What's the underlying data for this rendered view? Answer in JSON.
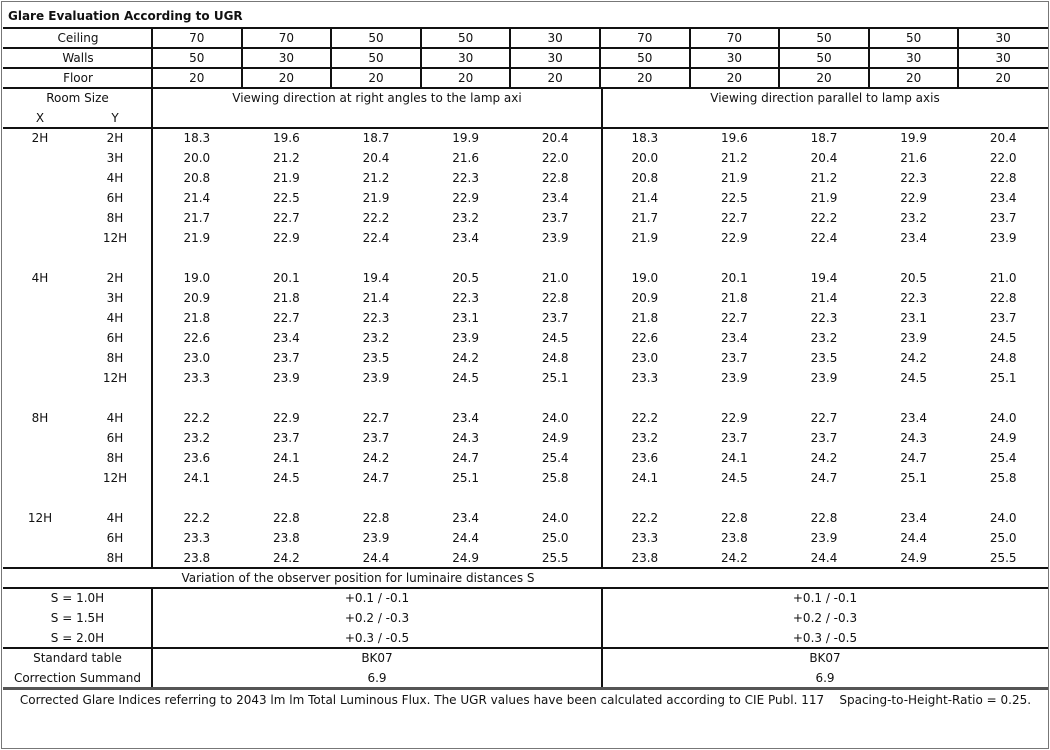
{
  "title": "Glare Evaluation According to UGR",
  "reflectances": [
    {
      "label": "Ceiling",
      "values": [
        "70",
        "70",
        "50",
        "50",
        "30",
        "70",
        "70",
        "50",
        "50",
        "30"
      ]
    },
    {
      "label": "Walls",
      "values": [
        "50",
        "30",
        "50",
        "30",
        "30",
        "50",
        "30",
        "50",
        "30",
        "30"
      ]
    },
    {
      "label": "Floor",
      "values": [
        "20",
        "20",
        "20",
        "20",
        "20",
        "20",
        "20",
        "20",
        "20",
        "20"
      ]
    }
  ],
  "room_size_label": "Room Size",
  "x_label": "X",
  "y_label": "Y",
  "direction_right_angles": "Viewing direction at right angles to the lamp axi",
  "direction_parallel": "Viewing direction parallel to lamp axis",
  "groups": [
    {
      "x": "2H",
      "rows": [
        {
          "y": "2H",
          "perp": [
            "18.3",
            "19.6",
            "18.7",
            "19.9",
            "20.4"
          ],
          "par": [
            "18.3",
            "19.6",
            "18.7",
            "19.9",
            "20.4"
          ]
        },
        {
          "y": "3H",
          "perp": [
            "20.0",
            "21.2",
            "20.4",
            "21.6",
            "22.0"
          ],
          "par": [
            "20.0",
            "21.2",
            "20.4",
            "21.6",
            "22.0"
          ]
        },
        {
          "y": "4H",
          "perp": [
            "20.8",
            "21.9",
            "21.2",
            "22.3",
            "22.8"
          ],
          "par": [
            "20.8",
            "21.9",
            "21.2",
            "22.3",
            "22.8"
          ]
        },
        {
          "y": "6H",
          "perp": [
            "21.4",
            "22.5",
            "21.9",
            "22.9",
            "23.4"
          ],
          "par": [
            "21.4",
            "22.5",
            "21.9",
            "22.9",
            "23.4"
          ]
        },
        {
          "y": "8H",
          "perp": [
            "21.7",
            "22.7",
            "22.2",
            "23.2",
            "23.7"
          ],
          "par": [
            "21.7",
            "22.7",
            "22.2",
            "23.2",
            "23.7"
          ]
        },
        {
          "y": "12H",
          "perp": [
            "21.9",
            "22.9",
            "22.4",
            "23.4",
            "23.9"
          ],
          "par": [
            "21.9",
            "22.9",
            "22.4",
            "23.4",
            "23.9"
          ]
        }
      ]
    },
    {
      "x": "4H",
      "rows": [
        {
          "y": "2H",
          "perp": [
            "19.0",
            "20.1",
            "19.4",
            "20.5",
            "21.0"
          ],
          "par": [
            "19.0",
            "20.1",
            "19.4",
            "20.5",
            "21.0"
          ]
        },
        {
          "y": "3H",
          "perp": [
            "20.9",
            "21.8",
            "21.4",
            "22.3",
            "22.8"
          ],
          "par": [
            "20.9",
            "21.8",
            "21.4",
            "22.3",
            "22.8"
          ]
        },
        {
          "y": "4H",
          "perp": [
            "21.8",
            "22.7",
            "22.3",
            "23.1",
            "23.7"
          ],
          "par": [
            "21.8",
            "22.7",
            "22.3",
            "23.1",
            "23.7"
          ]
        },
        {
          "y": "6H",
          "perp": [
            "22.6",
            "23.4",
            "23.2",
            "23.9",
            "24.5"
          ],
          "par": [
            "22.6",
            "23.4",
            "23.2",
            "23.9",
            "24.5"
          ]
        },
        {
          "y": "8H",
          "perp": [
            "23.0",
            "23.7",
            "23.5",
            "24.2",
            "24.8"
          ],
          "par": [
            "23.0",
            "23.7",
            "23.5",
            "24.2",
            "24.8"
          ]
        },
        {
          "y": "12H",
          "perp": [
            "23.3",
            "23.9",
            "23.9",
            "24.5",
            "25.1"
          ],
          "par": [
            "23.3",
            "23.9",
            "23.9",
            "24.5",
            "25.1"
          ]
        }
      ]
    },
    {
      "x": "8H",
      "rows": [
        {
          "y": "4H",
          "perp": [
            "22.2",
            "22.9",
            "22.7",
            "23.4",
            "24.0"
          ],
          "par": [
            "22.2",
            "22.9",
            "22.7",
            "23.4",
            "24.0"
          ]
        },
        {
          "y": "6H",
          "perp": [
            "23.2",
            "23.7",
            "23.7",
            "24.3",
            "24.9"
          ],
          "par": [
            "23.2",
            "23.7",
            "23.7",
            "24.3",
            "24.9"
          ]
        },
        {
          "y": "8H",
          "perp": [
            "23.6",
            "24.1",
            "24.2",
            "24.7",
            "25.4"
          ],
          "par": [
            "23.6",
            "24.1",
            "24.2",
            "24.7",
            "25.4"
          ]
        },
        {
          "y": "12H",
          "perp": [
            "24.1",
            "24.5",
            "24.7",
            "25.1",
            "25.8"
          ],
          "par": [
            "24.1",
            "24.5",
            "24.7",
            "25.1",
            "25.8"
          ]
        }
      ]
    },
    {
      "x": "12H",
      "rows": [
        {
          "y": "4H",
          "perp": [
            "22.2",
            "22.8",
            "22.8",
            "23.4",
            "24.0"
          ],
          "par": [
            "22.2",
            "22.8",
            "22.8",
            "23.4",
            "24.0"
          ]
        },
        {
          "y": "6H",
          "perp": [
            "23.3",
            "23.8",
            "23.9",
            "24.4",
            "25.0"
          ],
          "par": [
            "23.3",
            "23.8",
            "23.9",
            "24.4",
            "25.0"
          ]
        },
        {
          "y": "8H",
          "perp": [
            "23.8",
            "24.2",
            "24.4",
            "24.9",
            "25.5"
          ],
          "par": [
            "23.8",
            "24.2",
            "24.4",
            "24.9",
            "25.5"
          ]
        }
      ]
    }
  ],
  "variation_label": "Variation of the observer position for luminaire distances S",
  "variation": [
    {
      "label": "S = 1.0H",
      "perp": "+0.1 / -0.1",
      "par": "+0.1 / -0.1"
    },
    {
      "label": "S = 1.5H",
      "perp": "+0.2 / -0.3",
      "par": "+0.2 / -0.3"
    },
    {
      "label": "S = 2.0H",
      "perp": "+0.3 / -0.5",
      "par": "+0.3 / -0.5"
    }
  ],
  "standard_table": {
    "label": "Standard table",
    "perp": "BK07",
    "par": "BK07"
  },
  "correction_summand": {
    "label": "Correction Summand",
    "perp": "6.9",
    "par": "6.9"
  },
  "footer_note": "Corrected Glare Indices referring to 2043 lm lm Total Luminous Flux. The UGR values have been calculated according to CIE Publ. 117    Spacing-to-Height-Ratio = 0.25."
}
